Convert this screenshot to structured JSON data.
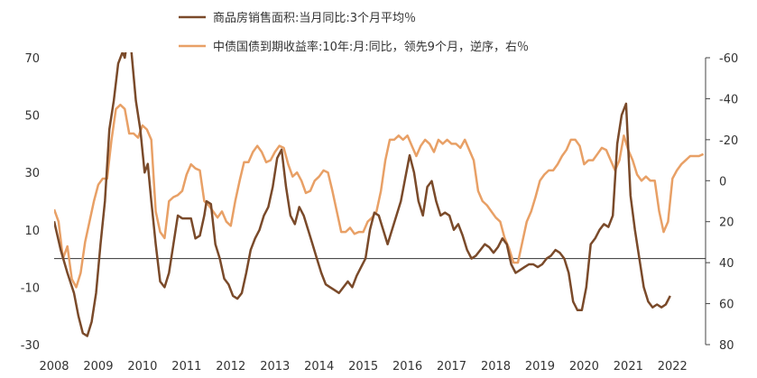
{
  "chart_data": {
    "type": "line",
    "legend_position": "top",
    "grid": false,
    "zero_line": true,
    "colors": {
      "brown": "#7a4a2a",
      "orange": "#e8a066",
      "axis": "#444444"
    },
    "y_left": {
      "min": -30,
      "max": 70,
      "ticks": [
        "70",
        "50",
        "30",
        "10",
        "-10",
        "-30"
      ]
    },
    "y_right": {
      "min": 80,
      "max": -60,
      "inverted": true,
      "ticks": [
        "-60",
        "-40",
        "-20",
        "0",
        "20",
        "40",
        "60",
        "80"
      ]
    },
    "x_axis": {
      "min": 2008.0,
      "max": 2022.75,
      "ticks": [
        "2008",
        "2009",
        "2010",
        "2011",
        "2012",
        "2013",
        "2014",
        "2015",
        "2016",
        "2017",
        "2018",
        "2019",
        "2020",
        "2021",
        "2022"
      ]
    },
    "series": [
      {
        "name": "商品房销售面积:当月同比:3个月平均％",
        "axis": "left",
        "color": "#7a4a2a",
        "points": [
          [
            2008.0,
            13
          ],
          [
            2008.15,
            3
          ],
          [
            2008.3,
            -5
          ],
          [
            2008.45,
            -12
          ],
          [
            2008.55,
            -20
          ],
          [
            2008.65,
            -26
          ],
          [
            2008.75,
            -27
          ],
          [
            2008.85,
            -22
          ],
          [
            2008.95,
            -12
          ],
          [
            2009.05,
            5
          ],
          [
            2009.15,
            20
          ],
          [
            2009.25,
            45
          ],
          [
            2009.35,
            55
          ],
          [
            2009.45,
            68
          ],
          [
            2009.55,
            72
          ],
          [
            2009.6,
            70
          ],
          [
            2009.68,
            78
          ],
          [
            2009.75,
            72
          ],
          [
            2009.85,
            55
          ],
          [
            2009.95,
            45
          ],
          [
            2010.05,
            30
          ],
          [
            2010.12,
            33
          ],
          [
            2010.2,
            20
          ],
          [
            2010.3,
            5
          ],
          [
            2010.4,
            -8
          ],
          [
            2010.5,
            -10
          ],
          [
            2010.6,
            -5
          ],
          [
            2010.7,
            5
          ],
          [
            2010.8,
            15
          ],
          [
            2010.9,
            14
          ],
          [
            2011.0,
            14
          ],
          [
            2011.1,
            14
          ],
          [
            2011.2,
            7
          ],
          [
            2011.3,
            8
          ],
          [
            2011.4,
            15
          ],
          [
            2011.45,
            20
          ],
          [
            2011.55,
            19
          ],
          [
            2011.65,
            5
          ],
          [
            2011.75,
            0
          ],
          [
            2011.85,
            -7
          ],
          [
            2011.95,
            -9
          ],
          [
            2012.05,
            -13
          ],
          [
            2012.15,
            -14
          ],
          [
            2012.25,
            -12
          ],
          [
            2012.35,
            -5
          ],
          [
            2012.45,
            3
          ],
          [
            2012.55,
            7
          ],
          [
            2012.65,
            10
          ],
          [
            2012.75,
            15
          ],
          [
            2012.85,
            18
          ],
          [
            2012.95,
            25
          ],
          [
            2013.05,
            35
          ],
          [
            2013.15,
            38
          ],
          [
            2013.25,
            25
          ],
          [
            2013.35,
            15
          ],
          [
            2013.45,
            12
          ],
          [
            2013.55,
            18
          ],
          [
            2013.65,
            15
          ],
          [
            2013.75,
            10
          ],
          [
            2013.85,
            5
          ],
          [
            2013.95,
            0
          ],
          [
            2014.05,
            -5
          ],
          [
            2014.15,
            -9
          ],
          [
            2014.25,
            -10
          ],
          [
            2014.35,
            -11
          ],
          [
            2014.45,
            -12
          ],
          [
            2014.55,
            -10
          ],
          [
            2014.65,
            -8
          ],
          [
            2014.75,
            -10
          ],
          [
            2014.85,
            -6
          ],
          [
            2014.95,
            -3
          ],
          [
            2015.05,
            0
          ],
          [
            2015.15,
            10
          ],
          [
            2015.25,
            16
          ],
          [
            2015.35,
            15
          ],
          [
            2015.45,
            10
          ],
          [
            2015.55,
            5
          ],
          [
            2015.65,
            10
          ],
          [
            2015.75,
            15
          ],
          [
            2015.85,
            20
          ],
          [
            2015.95,
            28
          ],
          [
            2016.05,
            36
          ],
          [
            2016.15,
            30
          ],
          [
            2016.25,
            20
          ],
          [
            2016.35,
            15
          ],
          [
            2016.45,
            25
          ],
          [
            2016.55,
            27
          ],
          [
            2016.65,
            20
          ],
          [
            2016.75,
            15
          ],
          [
            2016.85,
            16
          ],
          [
            2016.95,
            15
          ],
          [
            2017.05,
            10
          ],
          [
            2017.15,
            12
          ],
          [
            2017.25,
            8
          ],
          [
            2017.35,
            3
          ],
          [
            2017.45,
            0
          ],
          [
            2017.55,
            1
          ],
          [
            2017.65,
            3
          ],
          [
            2017.75,
            5
          ],
          [
            2017.85,
            4
          ],
          [
            2017.95,
            2
          ],
          [
            2018.05,
            4
          ],
          [
            2018.15,
            7
          ],
          [
            2018.25,
            5
          ],
          [
            2018.35,
            -2
          ],
          [
            2018.45,
            -5
          ],
          [
            2018.55,
            -4
          ],
          [
            2018.65,
            -3
          ],
          [
            2018.75,
            -2
          ],
          [
            2018.85,
            -2
          ],
          [
            2018.95,
            -3
          ],
          [
            2019.05,
            -2
          ],
          [
            2019.15,
            0
          ],
          [
            2019.25,
            1
          ],
          [
            2019.35,
            3
          ],
          [
            2019.45,
            2
          ],
          [
            2019.55,
            0
          ],
          [
            2019.65,
            -5
          ],
          [
            2019.75,
            -15
          ],
          [
            2019.85,
            -18
          ],
          [
            2019.95,
            -18
          ],
          [
            2020.05,
            -10
          ],
          [
            2020.15,
            5
          ],
          [
            2020.25,
            7
          ],
          [
            2020.35,
            10
          ],
          [
            2020.45,
            12
          ],
          [
            2020.55,
            11
          ],
          [
            2020.65,
            15
          ],
          [
            2020.75,
            40
          ],
          [
            2020.85,
            50
          ],
          [
            2020.95,
            54
          ],
          [
            2021.05,
            22
          ],
          [
            2021.15,
            10
          ],
          [
            2021.25,
            0
          ],
          [
            2021.35,
            -10
          ],
          [
            2021.45,
            -15
          ],
          [
            2021.55,
            -17
          ],
          [
            2021.65,
            -16
          ],
          [
            2021.75,
            -17
          ],
          [
            2021.85,
            -16
          ],
          [
            2021.95,
            -13
          ]
        ]
      },
      {
        "name": "中债国债到期收益率:10年:月:同比，领先9个月，逆序，右％",
        "axis": "right",
        "color": "#e8a066",
        "points": [
          [
            2008.0,
            14
          ],
          [
            2008.1,
            20
          ],
          [
            2008.2,
            38
          ],
          [
            2008.3,
            32
          ],
          [
            2008.4,
            48
          ],
          [
            2008.5,
            52
          ],
          [
            2008.6,
            45
          ],
          [
            2008.7,
            30
          ],
          [
            2008.8,
            20
          ],
          [
            2008.9,
            10
          ],
          [
            2009.0,
            2
          ],
          [
            2009.1,
            -1
          ],
          [
            2009.2,
            -1
          ],
          [
            2009.3,
            -20
          ],
          [
            2009.4,
            -35
          ],
          [
            2009.5,
            -37
          ],
          [
            2009.6,
            -35
          ],
          [
            2009.7,
            -23
          ],
          [
            2009.8,
            -23
          ],
          [
            2009.9,
            -21
          ],
          [
            2010.0,
            -27
          ],
          [
            2010.1,
            -25
          ],
          [
            2010.2,
            -20
          ],
          [
            2010.3,
            15
          ],
          [
            2010.4,
            25
          ],
          [
            2010.5,
            28
          ],
          [
            2010.6,
            10
          ],
          [
            2010.7,
            8
          ],
          [
            2010.8,
            7
          ],
          [
            2010.9,
            5
          ],
          [
            2011.0,
            -3
          ],
          [
            2011.1,
            -8
          ],
          [
            2011.2,
            -6
          ],
          [
            2011.3,
            -5
          ],
          [
            2011.4,
            10
          ],
          [
            2011.5,
            12
          ],
          [
            2011.6,
            15
          ],
          [
            2011.7,
            18
          ],
          [
            2011.8,
            15
          ],
          [
            2011.9,
            20
          ],
          [
            2012.0,
            22
          ],
          [
            2012.1,
            10
          ],
          [
            2012.2,
            0
          ],
          [
            2012.3,
            -9
          ],
          [
            2012.4,
            -9
          ],
          [
            2012.5,
            -14
          ],
          [
            2012.6,
            -17
          ],
          [
            2012.7,
            -14
          ],
          [
            2012.8,
            -9
          ],
          [
            2012.9,
            -10
          ],
          [
            2013.0,
            -14
          ],
          [
            2013.1,
            -17
          ],
          [
            2013.2,
            -16
          ],
          [
            2013.3,
            -8
          ],
          [
            2013.4,
            -2
          ],
          [
            2013.5,
            -4
          ],
          [
            2013.6,
            0
          ],
          [
            2013.7,
            6
          ],
          [
            2013.8,
            5
          ],
          [
            2013.9,
            0
          ],
          [
            2014.0,
            -2
          ],
          [
            2014.1,
            -5
          ],
          [
            2014.2,
            -4
          ],
          [
            2014.3,
            5
          ],
          [
            2014.4,
            15
          ],
          [
            2014.5,
            25
          ],
          [
            2014.6,
            25
          ],
          [
            2014.7,
            23
          ],
          [
            2014.8,
            26
          ],
          [
            2014.9,
            25
          ],
          [
            2015.0,
            25
          ],
          [
            2015.1,
            20
          ],
          [
            2015.2,
            18
          ],
          [
            2015.3,
            15
          ],
          [
            2015.4,
            5
          ],
          [
            2015.5,
            -10
          ],
          [
            2015.6,
            -20
          ],
          [
            2015.7,
            -20
          ],
          [
            2015.8,
            -22
          ],
          [
            2015.9,
            -20
          ],
          [
            2016.0,
            -22
          ],
          [
            2016.1,
            -17
          ],
          [
            2016.2,
            -12
          ],
          [
            2016.3,
            -17
          ],
          [
            2016.4,
            -20
          ],
          [
            2016.5,
            -18
          ],
          [
            2016.6,
            -14
          ],
          [
            2016.7,
            -20
          ],
          [
            2016.8,
            -18
          ],
          [
            2016.9,
            -20
          ],
          [
            2017.0,
            -18
          ],
          [
            2017.1,
            -18
          ],
          [
            2017.2,
            -16
          ],
          [
            2017.3,
            -20
          ],
          [
            2017.4,
            -15
          ],
          [
            2017.5,
            -10
          ],
          [
            2017.6,
            5
          ],
          [
            2017.7,
            10
          ],
          [
            2017.8,
            12
          ],
          [
            2017.9,
            15
          ],
          [
            2018.0,
            18
          ],
          [
            2018.1,
            20
          ],
          [
            2018.2,
            28
          ],
          [
            2018.3,
            33
          ],
          [
            2018.4,
            40
          ],
          [
            2018.5,
            40
          ],
          [
            2018.6,
            30
          ],
          [
            2018.7,
            20
          ],
          [
            2018.8,
            15
          ],
          [
            2018.9,
            8
          ],
          [
            2019.0,
            0
          ],
          [
            2019.1,
            -3
          ],
          [
            2019.2,
            -5
          ],
          [
            2019.3,
            -5
          ],
          [
            2019.4,
            -8
          ],
          [
            2019.5,
            -12
          ],
          [
            2019.6,
            -15
          ],
          [
            2019.7,
            -20
          ],
          [
            2019.8,
            -20
          ],
          [
            2019.9,
            -17
          ],
          [
            2020.0,
            -8
          ],
          [
            2020.1,
            -10
          ],
          [
            2020.2,
            -10
          ],
          [
            2020.3,
            -13
          ],
          [
            2020.4,
            -16
          ],
          [
            2020.5,
            -15
          ],
          [
            2020.6,
            -10
          ],
          [
            2020.7,
            -5
          ],
          [
            2020.8,
            -10
          ],
          [
            2020.9,
            -22
          ],
          [
            2021.0,
            -15
          ],
          [
            2021.1,
            -10
          ],
          [
            2021.2,
            -3
          ],
          [
            2021.3,
            0
          ],
          [
            2021.4,
            -2
          ],
          [
            2021.5,
            0
          ],
          [
            2021.6,
            0
          ],
          [
            2021.7,
            15
          ],
          [
            2021.8,
            25
          ],
          [
            2021.9,
            20
          ],
          [
            2022.0,
            -1
          ],
          [
            2022.1,
            -5
          ],
          [
            2022.2,
            -8
          ],
          [
            2022.3,
            -10
          ],
          [
            2022.4,
            -12
          ],
          [
            2022.5,
            -12
          ],
          [
            2022.6,
            -12
          ],
          [
            2022.7,
            -13
          ]
        ]
      }
    ]
  }
}
